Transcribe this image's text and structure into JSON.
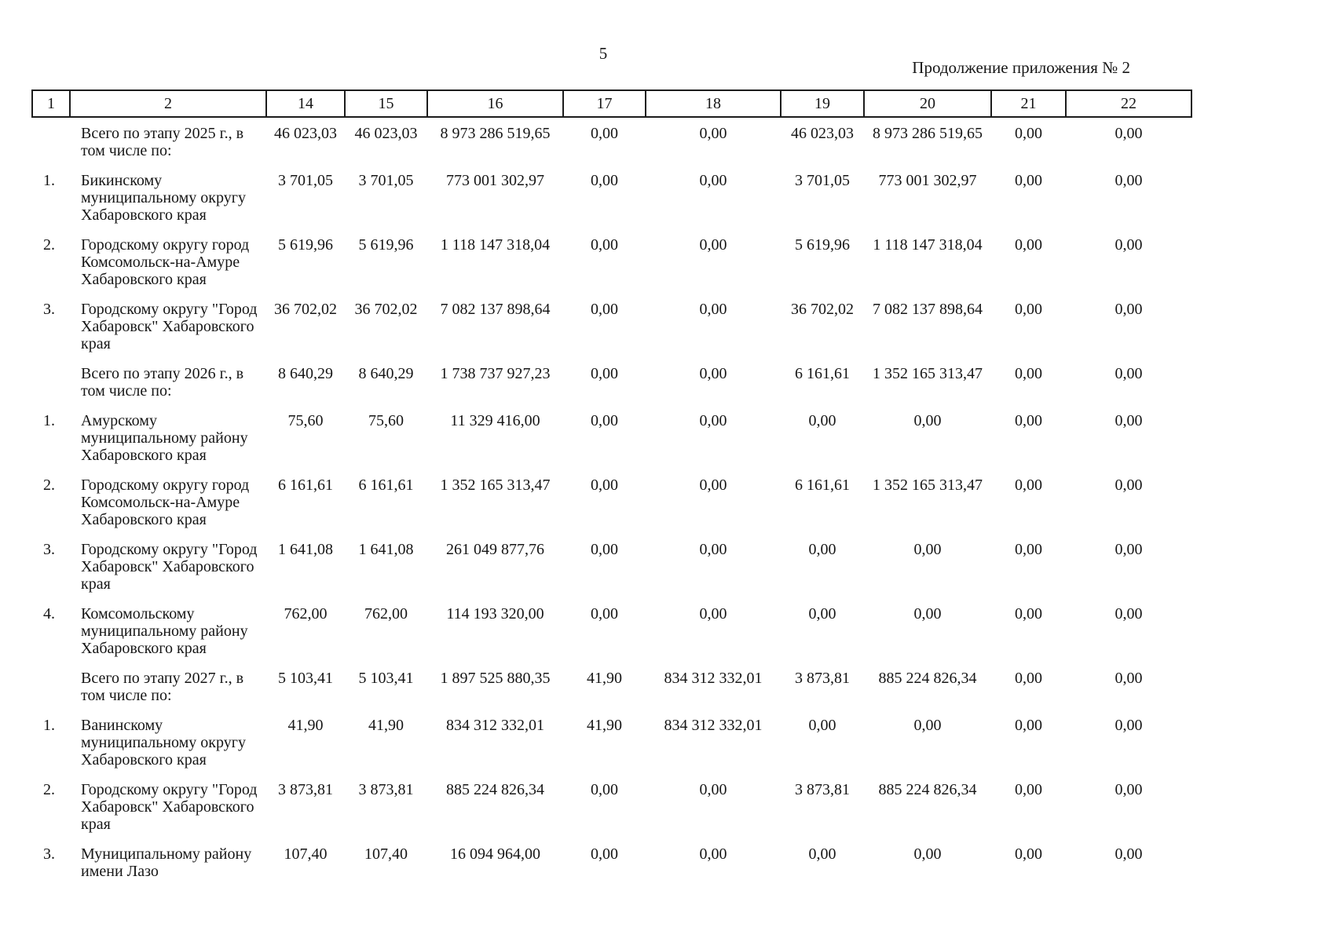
{
  "page": {
    "page_number": "5",
    "header_right": "Продолжение приложения № 2"
  },
  "table": {
    "columns": [
      "1",
      "2",
      "14",
      "15",
      "16",
      "17",
      "18",
      "19",
      "20",
      "21",
      "22"
    ],
    "rows": [
      {
        "num": "",
        "name": "Всего по этапу 2025 г., в том числе по:",
        "values": [
          "46 023,03",
          "46 023,03",
          "8 973 286 519,65",
          "0,00",
          "0,00",
          "46 023,03",
          "8 973 286 519,65",
          "0,00",
          "0,00"
        ]
      },
      {
        "num": "1.",
        "name": "Бикинскому муниципальному округу Хабаровского края",
        "values": [
          "3 701,05",
          "3 701,05",
          "773 001 302,97",
          "0,00",
          "0,00",
          "3 701,05",
          "773 001 302,97",
          "0,00",
          "0,00"
        ]
      },
      {
        "num": "2.",
        "name": "Городскому округу город Комсомольск-на-Амуре Хабаровского края",
        "values": [
          "5 619,96",
          "5 619,96",
          "1 118 147 318,04",
          "0,00",
          "0,00",
          "5 619,96",
          "1 118 147 318,04",
          "0,00",
          "0,00"
        ]
      },
      {
        "num": "3.",
        "name": "Городскому округу \"Город Хабаровск\" Хабаровского края",
        "values": [
          "36 702,02",
          "36 702,02",
          "7 082 137 898,64",
          "0,00",
          "0,00",
          "36 702,02",
          "7 082 137 898,64",
          "0,00",
          "0,00"
        ]
      },
      {
        "num": "",
        "name": "Всего по этапу 2026 г., в том числе по:",
        "values": [
          "8 640,29",
          "8 640,29",
          "1 738 737 927,23",
          "0,00",
          "0,00",
          "6 161,61",
          "1 352 165 313,47",
          "0,00",
          "0,00"
        ]
      },
      {
        "num": "1.",
        "name": "Амурскому муниципальному району Хабаровского края",
        "values": [
          "75,60",
          "75,60",
          "11 329 416,00",
          "0,00",
          "0,00",
          "0,00",
          "0,00",
          "0,00",
          "0,00"
        ]
      },
      {
        "num": "2.",
        "name": "Городскому округу город Комсомольск-на-Амуре Хабаровского края",
        "values": [
          "6 161,61",
          "6 161,61",
          "1 352 165 313,47",
          "0,00",
          "0,00",
          "6 161,61",
          "1 352 165 313,47",
          "0,00",
          "0,00"
        ]
      },
      {
        "num": "3.",
        "name": "Городскому округу \"Город Хабаровск\" Хабаровского края",
        "values": [
          "1 641,08",
          "1 641,08",
          "261 049 877,76",
          "0,00",
          "0,00",
          "0,00",
          "0,00",
          "0,00",
          "0,00"
        ]
      },
      {
        "num": "4.",
        "name": "Комсомольскому муниципальному району Хабаровского края",
        "values": [
          "762,00",
          "762,00",
          "114 193 320,00",
          "0,00",
          "0,00",
          "0,00",
          "0,00",
          "0,00",
          "0,00"
        ]
      },
      {
        "num": "",
        "name": "Всего по этапу 2027 г., в том числе по:",
        "values": [
          "5 103,41",
          "5 103,41",
          "1 897 525 880,35",
          "41,90",
          "834 312 332,01",
          "3 873,81",
          "885 224 826,34",
          "0,00",
          "0,00"
        ]
      },
      {
        "num": "1.",
        "name": "Ванинскому муниципальному округу Хабаровского края",
        "values": [
          "41,90",
          "41,90",
          "834 312 332,01",
          "41,90",
          "834 312 332,01",
          "0,00",
          "0,00",
          "0,00",
          "0,00"
        ]
      },
      {
        "num": "2.",
        "name": "Городскому округу \"Город Хабаровск\" Хабаровского края",
        "values": [
          "3 873,81",
          "3 873,81",
          "885 224 826,34",
          "0,00",
          "0,00",
          "3 873,81",
          "885 224 826,34",
          "0,00",
          "0,00"
        ]
      },
      {
        "num": "3.",
        "name": "Муниципальному району имени Лазо",
        "values": [
          "107,40",
          "107,40",
          "16 094 964,00",
          "0,00",
          "0,00",
          "0,00",
          "0,00",
          "0,00",
          "0,00"
        ]
      }
    ]
  }
}
